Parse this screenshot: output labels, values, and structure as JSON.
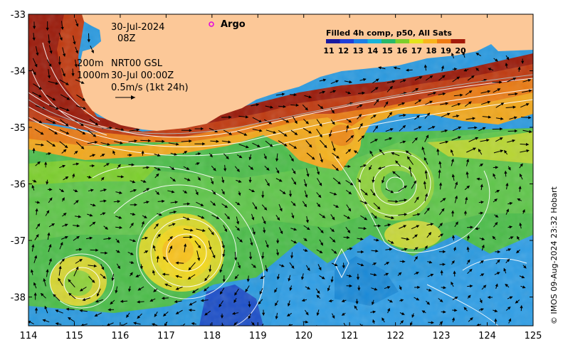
{
  "map": {
    "date": "30-Jul-2024",
    "time": "08Z",
    "contour_label_200": "200m",
    "contour_label_1000": "1000m",
    "product_label": "NRT00 GSL",
    "product_time": "30-Jul 00:00Z",
    "scale_label": "0.5m/s (1kt 24h)",
    "argo_label": "Argo",
    "argo_marker_color": "#e000e0",
    "credit": "© IMOS 09-Aug-2024 23:32 Hobart",
    "land_color": "#fcc898",
    "colorbar": {
      "title": "Filled 4h comp, p50, All Sats",
      "labels": [
        "11",
        "12",
        "13",
        "14",
        "15",
        "16",
        "17",
        "18",
        "19",
        "20"
      ],
      "colors": [
        "#1a1aa0",
        "#1f3fd8",
        "#1b7fe6",
        "#18b3d8",
        "#27b86a",
        "#7ccf2c",
        "#e4e41c",
        "#f8b41c",
        "#ef7a12",
        "#a41a0a"
      ]
    },
    "xaxis": {
      "ticks": [
        "114",
        "115",
        "116",
        "117",
        "118",
        "119",
        "120",
        "121",
        "122",
        "123",
        "124",
        "125"
      ]
    },
    "yaxis": {
      "ticks": [
        "-33",
        "-34",
        "-35",
        "-36",
        "-37",
        "-38"
      ]
    }
  }
}
